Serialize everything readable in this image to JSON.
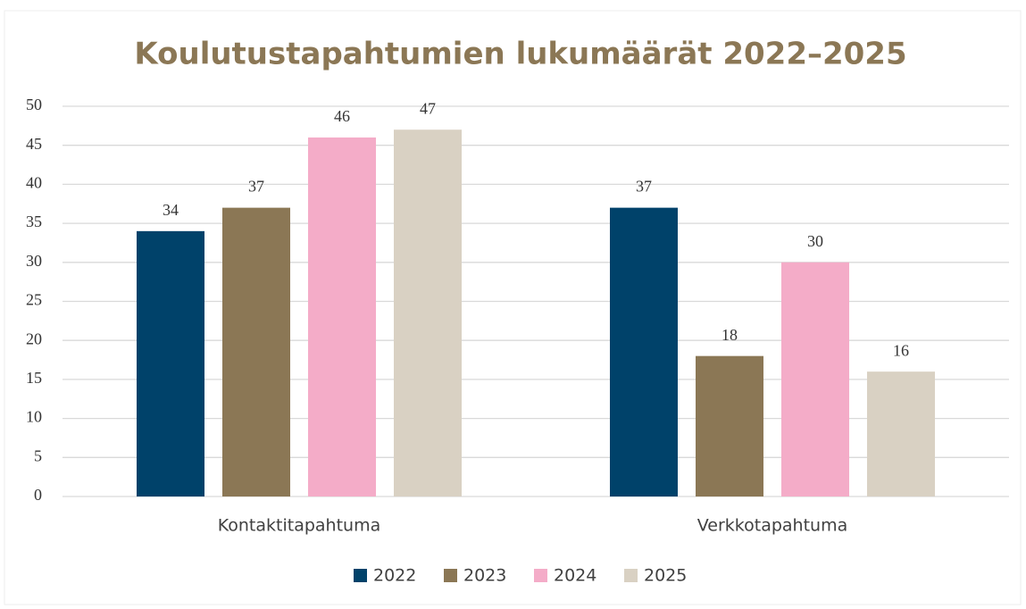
{
  "chart_data": {
    "type": "bar",
    "title": "Koulutustapahtumien lukumäärät 2022–2025",
    "categories": [
      "Kontaktitapahtuma",
      "Verkkotapahtuma"
    ],
    "series": [
      {
        "name": "2022",
        "color": "#00426a",
        "values": [
          34,
          37
        ]
      },
      {
        "name": "2023",
        "color": "#8b7755",
        "values": [
          37,
          18
        ]
      },
      {
        "name": "2024",
        "color": "#f4acc8",
        "values": [
          46,
          30
        ]
      },
      {
        "name": "2025",
        "color": "#d9d1c3",
        "values": [
          47,
          16
        ]
      }
    ],
    "ylim": [
      0,
      50
    ],
    "yticks": [
      0,
      5,
      10,
      15,
      20,
      25,
      30,
      35,
      40,
      45,
      50
    ],
    "grid": true,
    "legend": "bottom"
  }
}
